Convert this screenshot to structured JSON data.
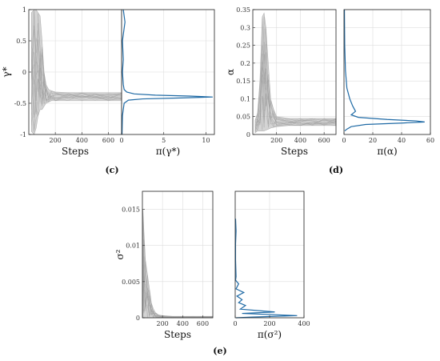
{
  "colors": {
    "trace": "#b0b0b0",
    "density": "#1f6aa5",
    "grid": "#dddddd",
    "axis": "#222222"
  },
  "panels": {
    "c": {
      "label": "(c)"
    },
    "d": {
      "label": "(d)"
    },
    "e": {
      "label": "(e)"
    }
  },
  "chart_data": [
    {
      "id": "c-trace",
      "type": "line",
      "panel": "c",
      "title": "",
      "xlabel": "Steps",
      "ylabel": "γ*",
      "xlim": [
        0,
        700
      ],
      "ylim": [
        -1,
        1
      ],
      "grid": true,
      "xticks": [
        200,
        400,
        600
      ],
      "yticks": [
        -1,
        -0.5,
        0,
        0.5,
        1
      ],
      "xtick_labels": [
        "200",
        "400",
        "600"
      ],
      "ytick_labels": [
        "-1",
        "-0.5",
        "0",
        "0.5",
        "1"
      ],
      "series": [
        {
          "x": [
            20,
            40,
            55,
            70,
            85,
            100,
            115,
            130,
            150,
            170,
            200,
            300,
            400,
            500,
            600,
            700
          ],
          "upper": [
            0.95,
            1.0,
            1.0,
            0.95,
            0.9,
            0.5,
            0.0,
            -0.2,
            -0.28,
            -0.3,
            -0.32,
            -0.33,
            -0.33,
            -0.33,
            -0.33,
            -0.33
          ],
          "lower": [
            -0.95,
            -1.0,
            -0.9,
            -0.7,
            -0.6,
            -0.6,
            -0.55,
            -0.5,
            -0.48,
            -0.46,
            -0.46,
            -0.46,
            -0.46,
            -0.46,
            -0.46,
            -0.46
          ]
        }
      ]
    },
    {
      "id": "c-density",
      "type": "line",
      "panel": "c",
      "title": "",
      "xlabel": "π(γ*)",
      "ylabel": "",
      "xlim": [
        0,
        11
      ],
      "ylim": [
        -1,
        1
      ],
      "grid": true,
      "xticks": [
        0,
        5,
        10
      ],
      "xtick_labels": [
        "0",
        "5",
        "10"
      ],
      "series": [
        {
          "x": [
            0.2,
            0.4,
            0.1,
            0.2,
            0.1,
            0.2,
            0.3,
            0.6,
            1.5,
            4.0,
            8.0,
            10.8,
            7.0,
            2.5,
            0.8,
            0.3,
            0.1,
            0.05
          ],
          "y": [
            1.0,
            0.8,
            0.5,
            0.2,
            0.0,
            -0.2,
            -0.28,
            -0.32,
            -0.35,
            -0.37,
            -0.385,
            -0.4,
            -0.415,
            -0.43,
            -0.45,
            -0.5,
            -0.7,
            -1.0
          ]
        }
      ]
    },
    {
      "id": "d-trace",
      "type": "line",
      "panel": "d",
      "title": "",
      "xlabel": "Steps",
      "ylabel": "α",
      "xlim": [
        0,
        700
      ],
      "ylim": [
        0,
        0.35
      ],
      "grid": true,
      "xticks": [
        200,
        400,
        600
      ],
      "yticks": [
        0,
        0.05,
        0.1,
        0.15,
        0.2,
        0.25,
        0.3,
        0.35
      ],
      "xtick_labels": [
        "200",
        "400",
        "600"
      ],
      "ytick_labels": [
        "0",
        "0.05",
        "0.1",
        "0.15",
        "0.2",
        "0.25",
        "0.3",
        "0.35"
      ],
      "series": [
        {
          "x": [
            20,
            40,
            60,
            80,
            95,
            110,
            130,
            150,
            175,
            200,
            300,
            400,
            500,
            600,
            700
          ],
          "upper": [
            0.04,
            0.06,
            0.15,
            0.33,
            0.34,
            0.3,
            0.2,
            0.1,
            0.07,
            0.05,
            0.045,
            0.045,
            0.045,
            0.045,
            0.045
          ],
          "lower": [
            0.005,
            0.01,
            0.01,
            0.01,
            0.01,
            0.012,
            0.015,
            0.018,
            0.02,
            0.022,
            0.025,
            0.025,
            0.025,
            0.025,
            0.025
          ]
        }
      ]
    },
    {
      "id": "d-density",
      "type": "line",
      "panel": "d",
      "title": "",
      "xlabel": "π(α)",
      "ylabel": "",
      "xlim": [
        0,
        60
      ],
      "ylim": [
        0,
        0.35
      ],
      "grid": true,
      "xticks": [
        0,
        20,
        40,
        60
      ],
      "xtick_labels": [
        "0",
        "20",
        "40",
        "60"
      ],
      "series": [
        {
          "x": [
            0.3,
            0.5,
            1,
            2,
            4,
            6,
            8,
            5,
            10,
            30,
            50,
            56,
            40,
            15,
            5,
            2,
            0.5
          ],
          "y": [
            0.35,
            0.25,
            0.18,
            0.13,
            0.1,
            0.08,
            0.065,
            0.055,
            0.048,
            0.042,
            0.038,
            0.035,
            0.032,
            0.028,
            0.022,
            0.015,
            0.01
          ]
        }
      ]
    },
    {
      "id": "e-trace",
      "type": "line",
      "panel": "e",
      "title": "",
      "xlabel": "Steps",
      "ylabel": "σ²",
      "xlim": [
        0,
        700
      ],
      "ylim": [
        0,
        0.0175
      ],
      "grid": true,
      "xticks": [
        200,
        400,
        600
      ],
      "yticks": [
        0,
        0.005,
        0.01,
        0.015
      ],
      "xtick_labels": [
        "200",
        "400",
        "600"
      ],
      "ytick_labels": [
        "0",
        "0.005",
        "0.01",
        "0.015"
      ],
      "series": [
        {
          "x": [
            5,
            15,
            30,
            50,
            70,
            90,
            110,
            130,
            160,
            200,
            300,
            400,
            500,
            600,
            700
          ],
          "upper": [
            0.015,
            0.012,
            0.008,
            0.006,
            0.004,
            0.002,
            0.0012,
            0.0007,
            0.0004,
            0.0003,
            0.0002,
            0.0002,
            0.0002,
            0.0002,
            0.0002
          ],
          "lower": [
            0.0,
            0.0,
            0.0,
            0.0,
            0.0,
            0.0,
            0.0,
            0.0,
            0.0,
            0.0,
            0.0,
            0.0,
            0.0,
            0.0,
            0.0
          ]
        }
      ]
    },
    {
      "id": "e-density",
      "type": "line",
      "panel": "e",
      "title": "",
      "xlabel": "π(σ²)",
      "ylabel": "",
      "xlim": [
        0,
        400
      ],
      "ylim": [
        0,
        0.0175
      ],
      "grid": true,
      "xticks": [
        0,
        200,
        400
      ],
      "xtick_labels": [
        "0",
        "200",
        "400"
      ],
      "series": [
        {
          "x": [
            2,
            5,
            2,
            2,
            5,
            2,
            20,
            5,
            50,
            10,
            40,
            20,
            60,
            30,
            230,
            40,
            360,
            100,
            5
          ],
          "y": [
            0.0137,
            0.012,
            0.0102,
            0.008,
            0.0057,
            0.0052,
            0.0047,
            0.004,
            0.0035,
            0.003,
            0.0025,
            0.0021,
            0.0017,
            0.0012,
            0.0008,
            0.0006,
            0.0003,
            0.0001,
            0.0
          ]
        }
      ]
    }
  ]
}
